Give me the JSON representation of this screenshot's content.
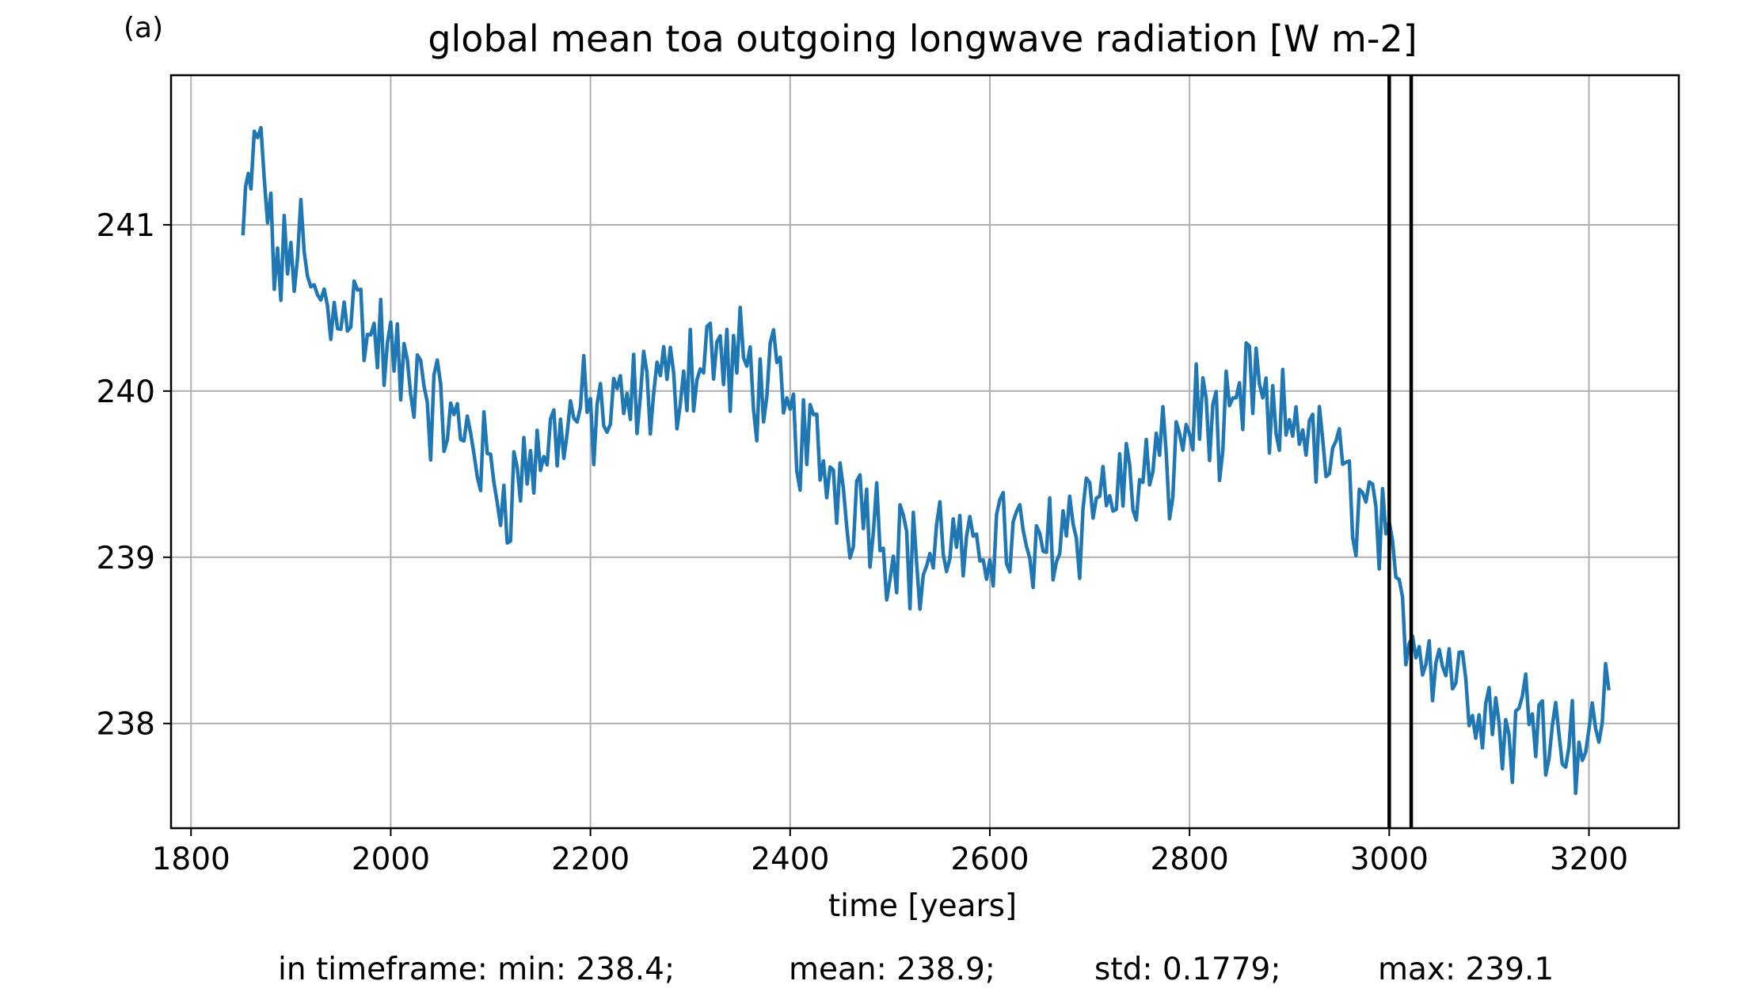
{
  "panel_label": "(a)",
  "colors": {
    "series": "#1f77b4",
    "grid": "#b0b0b0",
    "axes": "#000000",
    "marker_lines": "#000000"
  },
  "stats": {
    "min": "in timeframe: min: 238.4;",
    "mean": "mean: 238.9;",
    "std": "std: 0.1779;",
    "max": "max: 239.1"
  },
  "chart_data": {
    "type": "line",
    "title": "global mean toa outgoing longwave radiation [W m-2]",
    "xlabel": "time [years]",
    "ylabel": "",
    "xlim": [
      1780,
      3290
    ],
    "ylim": [
      237.37,
      241.9
    ],
    "xticks": [
      1800,
      2000,
      2200,
      2400,
      2600,
      2800,
      3000,
      3200
    ],
    "yticks": [
      238,
      239,
      240,
      241
    ],
    "grid": true,
    "vertical_lines": [
      3000,
      3022
    ],
    "series": [
      {
        "x": [
          1852,
          1860,
          1870,
          1880,
          1890,
          1900,
          1910,
          1920,
          1930,
          1940,
          1950,
          1960,
          1970,
          1980,
          1990,
          2000,
          2010,
          2020,
          2030,
          2040,
          2050,
          2060,
          2070,
          2080,
          2090,
          2100,
          2110,
          2120,
          2130,
          2140,
          2150,
          2160,
          2170,
          2180,
          2190,
          2200,
          2210,
          2220,
          2230,
          2240,
          2250,
          2260,
          2270,
          2280,
          2290,
          2300,
          2310,
          2320,
          2330,
          2340,
          2350,
          2360,
          2370,
          2380,
          2390,
          2400,
          2410,
          2420,
          2430,
          2440,
          2450,
          2460,
          2470,
          2480,
          2490,
          2500,
          2510,
          2520,
          2530,
          2540,
          2550,
          2560,
          2570,
          2580,
          2590,
          2600,
          2610,
          2620,
          2630,
          2640,
          2650,
          2660,
          2670,
          2680,
          2690,
          2700,
          2710,
          2720,
          2730,
          2740,
          2750,
          2760,
          2770,
          2780,
          2790,
          2800,
          2810,
          2820,
          2830,
          2840,
          2850,
          2860,
          2870,
          2880,
          2890,
          2900,
          2910,
          2920,
          2930,
          2940,
          2950,
          2960,
          2970,
          2980,
          2990,
          3000,
          3010,
          3020,
          3030,
          3040,
          3050,
          3060,
          3070,
          3080,
          3090,
          3100,
          3110,
          3120,
          3130,
          3140,
          3150,
          3160,
          3170,
          3180,
          3190,
          3200,
          3210,
          3220
        ],
        "y": [
          240.9,
          241.3,
          241.5,
          240.9,
          240.7,
          240.8,
          240.9,
          240.5,
          240.6,
          240.4,
          240.6,
          240.5,
          240.5,
          240.3,
          240.3,
          240.2,
          240.1,
          240.1,
          240.2,
          239.9,
          239.9,
          239.8,
          239.7,
          239.8,
          239.6,
          239.5,
          239.4,
          239.4,
          239.5,
          239.6,
          239.6,
          239.7,
          239.8,
          239.8,
          239.9,
          239.8,
          239.9,
          239.8,
          239.9,
          239.9,
          240.0,
          240.0,
          240.1,
          240.0,
          240.1,
          240.2,
          240.1,
          240.3,
          240.2,
          240.1,
          240.2,
          240.1,
          240.0,
          240.1,
          239.9,
          239.8,
          239.7,
          239.7,
          239.6,
          239.5,
          239.5,
          239.3,
          239.4,
          239.3,
          239.2,
          239.0,
          239.2,
          239.0,
          238.9,
          239.0,
          239.1,
          239.1,
          239.0,
          238.9,
          239.1,
          239.1,
          239.2,
          239.1,
          239.1,
          239.0,
          238.9,
          239.2,
          239.1,
          239.3,
          239.2,
          239.4,
          239.4,
          239.3,
          239.5,
          239.4,
          239.4,
          239.5,
          239.6,
          239.5,
          239.7,
          239.8,
          239.9,
          239.9,
          239.6,
          239.8,
          239.8,
          240.1,
          240.0,
          239.7,
          239.8,
          239.8,
          239.9,
          239.7,
          239.6,
          239.6,
          239.5,
          239.4,
          239.3,
          239.3,
          239.2,
          238.9,
          238.7,
          238.6,
          238.5,
          238.5,
          238.4,
          238.4,
          238.3,
          238.2,
          238.2,
          238.1,
          238.0,
          237.9,
          238.0,
          238.1,
          238.2,
          238.0,
          237.9,
          238.0,
          237.9,
          237.8,
          238.1,
          238.2
        ]
      }
    ]
  }
}
